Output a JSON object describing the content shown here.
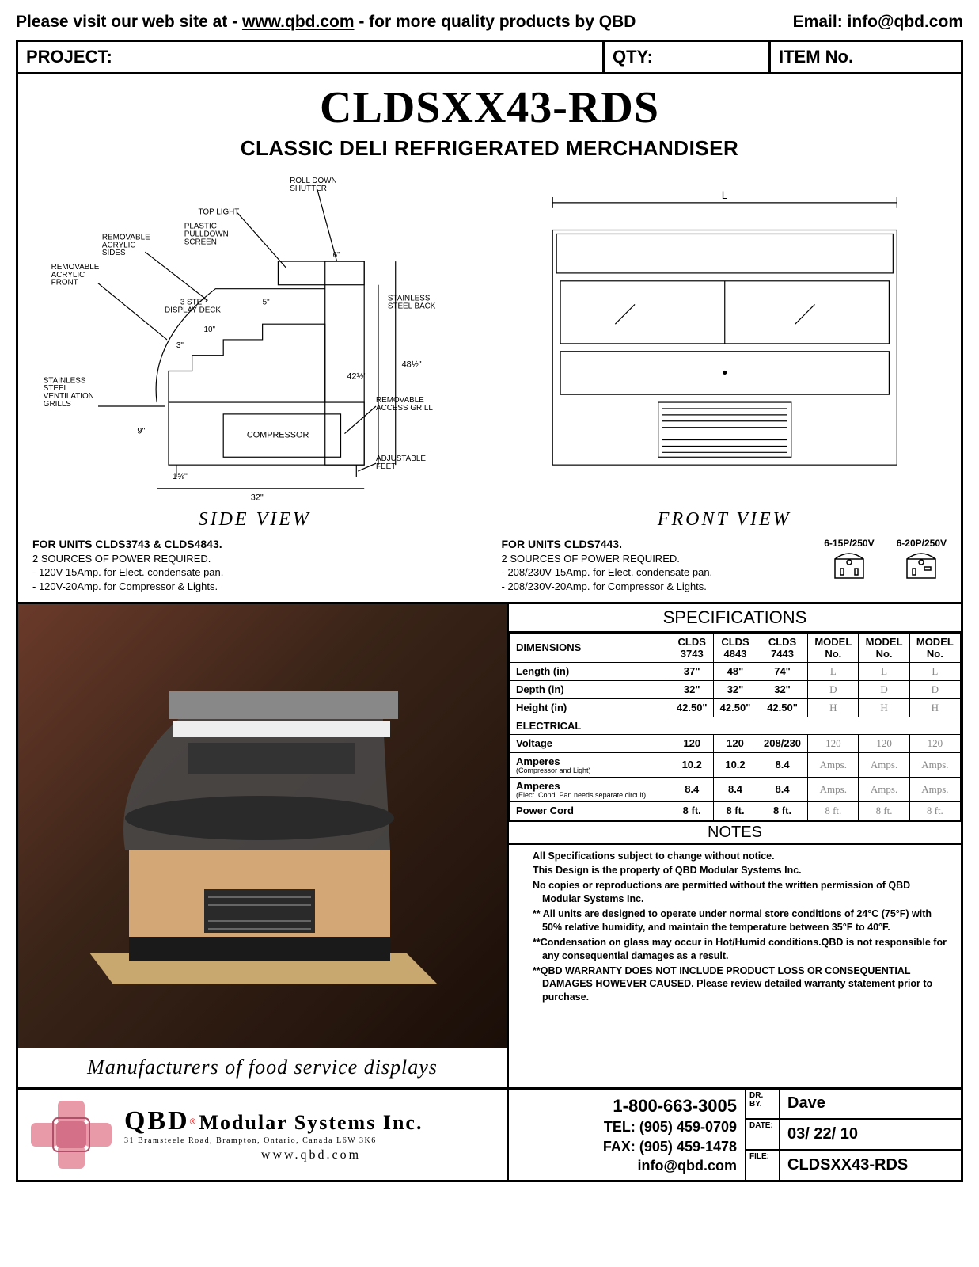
{
  "top": {
    "visit_prefix": "Please visit our web site at - ",
    "url": "www.qbd.com",
    "visit_suffix": " - for more quality products by QBD",
    "email_label": "Email: ",
    "email": "info@qbd.com"
  },
  "header": {
    "project": "PROJECT:",
    "qty": "QTY:",
    "item": "ITEM No."
  },
  "title": {
    "model": "CLDSXX43-RDS",
    "subtitle": "CLASSIC DELI  REFRIGERATED MERCHANDISER"
  },
  "views": {
    "side": "SIDE  VIEW",
    "front": "FRONT  VIEW"
  },
  "side_callouts": {
    "roll_down_shutter": "ROLL DOWN SHUTTER",
    "top_light": "TOP LIGHT",
    "plastic_pulldown_screen": "PLASTIC PULLDOWN SCREEN",
    "removable_acrylic_sides": "REMOVABLE ACRYLIC SIDES",
    "removable_acrylic_front": "REMOVABLE ACRYLIC FRONT",
    "display_deck": "3 STEP DISPLAY DECK",
    "ss_back": "STAINLESS STEEL BACK",
    "ss_vent": "STAINLESS STEEL VENTILATION GRILLS",
    "compressor": "COMPRESSOR",
    "access_grill": "REMOVABLE ACCESS GRILL",
    "adj_feet": "ADJUSTABLE FEET",
    "d6": "6\"",
    "d5": "5\"",
    "d10": "10\"",
    "d3": "3\"",
    "h42": "42½\"",
    "h48": "48½\"",
    "h9": "9\"",
    "w158": "1⅝\"",
    "w32": "32\"",
    "L": "L"
  },
  "power_left": {
    "heading": "FOR UNITS CLDS3743 & CLDS4843.",
    "line1": "2 SOURCES OF POWER REQUIRED.",
    "line2": "-  120V-15Amp. for Elect. condensate pan.",
    "line3": "-  120V-20Amp. for Compressor & Lights."
  },
  "power_right": {
    "heading": "FOR UNITS CLDS7443.",
    "line1": "2 SOURCES OF POWER REQUIRED.",
    "line2": "-  208/230V-15Amp. for Elect. condensate pan.",
    "line3": "-  208/230V-20Amp. for Compressor & Lights.",
    "plug1": "6-15P/250V",
    "plug2": "6-20P/250V"
  },
  "spec": {
    "title": "SPECIFICATIONS",
    "cols": [
      "DIMENSIONS",
      "CLDS 3743",
      "CLDS 4843",
      "CLDS 7443",
      "MODEL No.",
      "MODEL No.",
      "MODEL No."
    ],
    "rows": [
      {
        "h": "Length (in)",
        "v": [
          "37\"",
          "48\"",
          "74\"",
          "L",
          "L",
          "L"
        ]
      },
      {
        "h": "Depth  (in)",
        "v": [
          "32\"",
          "32\"",
          "32\"",
          "D",
          "D",
          "D"
        ]
      },
      {
        "h": "Height (in)",
        "v": [
          "42.50\"",
          "42.50\"",
          "42.50\"",
          "H",
          "H",
          "H"
        ]
      }
    ],
    "elec_label": "ELECTRICAL",
    "erows": [
      {
        "h": "Voltage",
        "s": "",
        "v": [
          "120",
          "120",
          "208/230",
          "120",
          "120",
          "120"
        ]
      },
      {
        "h": "Amperes",
        "s": "(Compressor and Light)",
        "v": [
          "10.2",
          "10.2",
          "8.4",
          "Amps.",
          "Amps.",
          "Amps."
        ]
      },
      {
        "h": "Amperes",
        "s": "(Elect. Cond. Pan needs separate circuit)",
        "v": [
          "8.4",
          "8.4",
          "8.4",
          "Amps.",
          "Amps.",
          "Amps."
        ]
      },
      {
        "h": "Power Cord",
        "s": "",
        "v": [
          "8 ft.",
          "8 ft.",
          "8 ft.",
          "8  ft.",
          "8  ft.",
          "8  ft."
        ]
      }
    ]
  },
  "notes": {
    "title": "NOTES",
    "n1": "All Specifications subject to change without notice.",
    "n2": "This Design is the property of QBD Modular Systems Inc.",
    "n3": "No copies or reproductions are permitted without the written permission of QBD Modular Systems Inc.",
    "n4": "** All units are designed to operate under normal store  conditions of 24°C (75°F) with 50% relative humidity, and maintain the temperature between 35°F to 40°F.",
    "n5": "**Condensation on glass may occur in Hot/Humid  conditions.QBD is not  responsible for any  consequential damages as a result.",
    "n6": "**QBD WARRANTY DOES NOT INCLUDE PRODUCT LOSS OR CONSEQUENTIAL DAMAGES HOWEVER CAUSED. Please review detailed warranty statement prior to purchase."
  },
  "tagline": "Manufacturers  of  food  service  displays",
  "footer": {
    "brand": "QBD",
    "company": "Modular Systems Inc.",
    "addr": "31 Bramsteele Road, Brampton, Ontario, Canada L6W 3K6",
    "web": "www.qbd.com",
    "phone800": "1-800-663-3005",
    "tel": "TEL: (905) 459-0709",
    "fax": "FAX: (905) 459-1478",
    "email": "info@qbd.com",
    "drby_lbl": "DR. BY.",
    "drby": "Dave",
    "date_lbl": "DATE:",
    "date": "03/ 22/ 10",
    "file_lbl": "FILE:",
    "file": "CLDSXX43-RDS"
  }
}
